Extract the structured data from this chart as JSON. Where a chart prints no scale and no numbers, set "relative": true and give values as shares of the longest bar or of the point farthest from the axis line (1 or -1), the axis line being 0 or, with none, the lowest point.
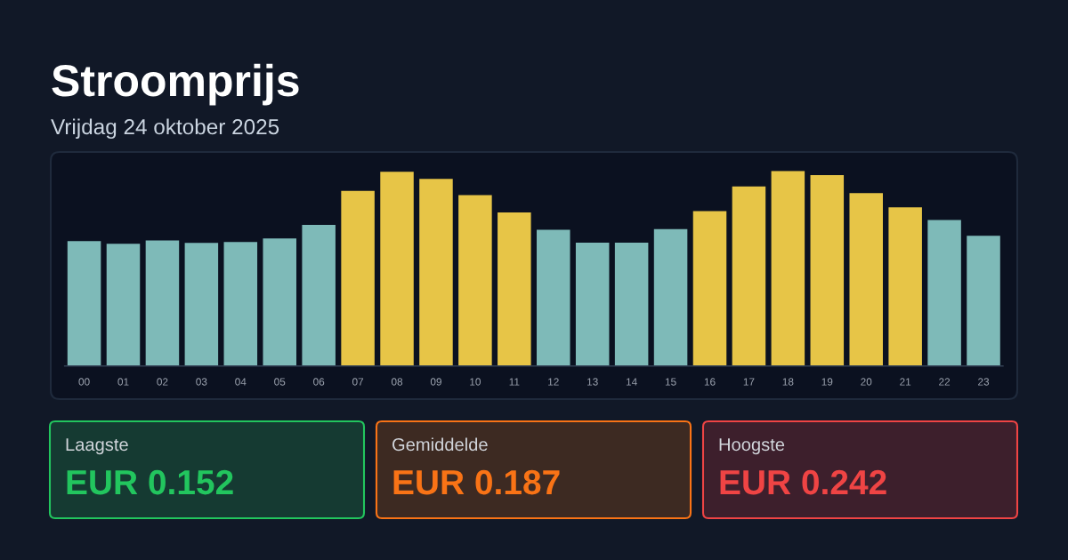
{
  "chart_data": {
    "type": "bar",
    "title": "Stroomprijs",
    "subtitle": "Vrijdag 24 oktober 2025",
    "categories": [
      "00",
      "01",
      "02",
      "03",
      "04",
      "05",
      "06",
      "07",
      "08",
      "09",
      "10",
      "11",
      "12",
      "13",
      "14",
      "15",
      "16",
      "17",
      "18",
      "19",
      "20",
      "21",
      "22",
      "23"
    ],
    "values": [
      0.64,
      0.627,
      0.644,
      0.631,
      0.636,
      0.654,
      0.723,
      0.898,
      0.996,
      0.959,
      0.876,
      0.787,
      0.698,
      0.632,
      0.632,
      0.702,
      0.794,
      0.921,
      1,
      0.979,
      0.886,
      0.813,
      0.749,
      0.668
    ],
    "colors": [
      "#7ebab8",
      "#7ebab8",
      "#7ebab8",
      "#7ebab8",
      "#7ebab8",
      "#7ebab8",
      "#7ebab8",
      "#e7c547",
      "#e7c547",
      "#e7c547",
      "#e7c547",
      "#e7c547",
      "#7ebab8",
      "#7ebab8",
      "#7ebab8",
      "#7ebab8",
      "#e7c547",
      "#e7c547",
      "#e7c547",
      "#e7c547",
      "#e7c547",
      "#e7c547",
      "#7ebab8",
      "#7ebab8"
    ],
    "relative": true,
    "tick_labels": "x",
    "annotations": [
      "Laagste",
      "EUR 0.152",
      "Gemiddelde",
      "EUR 0.187",
      "Hoogste",
      "EUR 0.242"
    ]
  }
}
